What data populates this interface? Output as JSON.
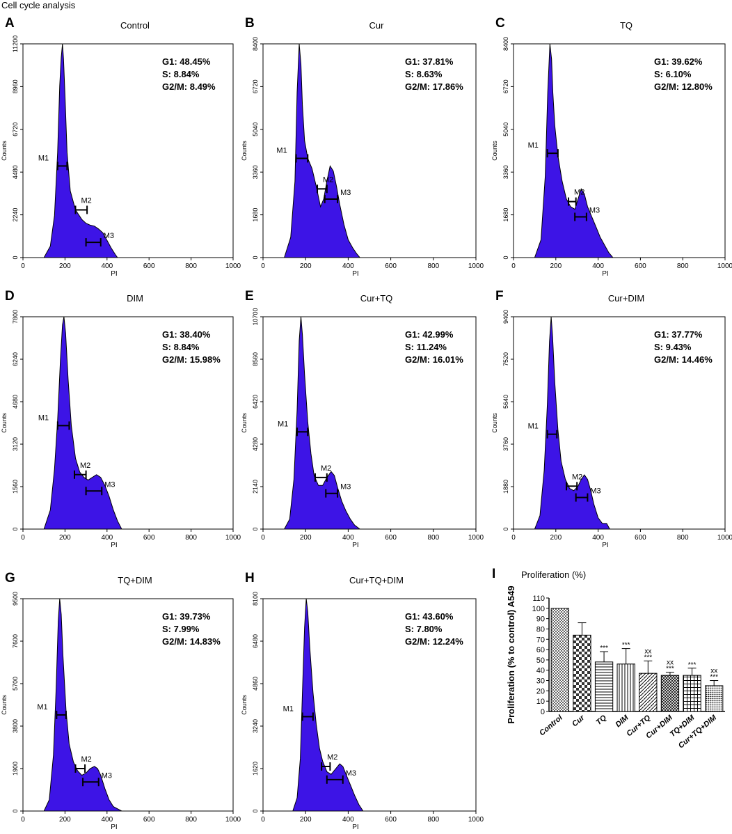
{
  "figure_title": "Cell cycle analysis",
  "colors": {
    "fill": "#3d14e6",
    "stroke": "#000000"
  },
  "chart_data": [
    {
      "type": "area",
      "panel": "A",
      "title": "Control",
      "xlabel": "PI",
      "ylabel": "Counts",
      "xlim": [
        0,
        1000
      ],
      "ylim": [
        0,
        11200
      ],
      "xticks": [
        0,
        200,
        400,
        600,
        800,
        1000
      ],
      "yticks": [
        0,
        2240,
        4480,
        6720,
        8960,
        11200
      ],
      "stats": [
        "G1: 48.45%",
        "S: 8.84%",
        "G2/M: 8.49%"
      ],
      "x": [
        100,
        130,
        150,
        165,
        175,
        182,
        188,
        193,
        200,
        210,
        225,
        250,
        280,
        300,
        320,
        340,
        360,
        380,
        400,
        420,
        440,
        450
      ],
      "values": [
        0,
        600,
        2200,
        5500,
        9000,
        10500,
        11200,
        10400,
        8500,
        5500,
        3500,
        2500,
        2000,
        1800,
        1700,
        1650,
        1500,
        1300,
        900,
        500,
        150,
        0
      ],
      "markers": [
        {
          "label": "M1",
          "x1": 165,
          "x2": 210,
          "y": 4800
        },
        {
          "label": "M2",
          "x1": 250,
          "x2": 305,
          "y": 2500
        },
        {
          "label": "M3",
          "x1": 300,
          "x2": 370,
          "y": 800
        }
      ]
    },
    {
      "type": "area",
      "panel": "B",
      "title": "Cur",
      "xlabel": "PI",
      "ylabel": "Counts",
      "xlim": [
        0,
        1000
      ],
      "ylim": [
        0,
        8400
      ],
      "xticks": [
        0,
        200,
        400,
        600,
        800,
        1000
      ],
      "yticks": [
        0,
        1680,
        3360,
        5040,
        6720,
        8400
      ],
      "stats": [
        "G1: 37.81%",
        "S: 8.63%",
        "G2/M: 17.86%"
      ],
      "x": [
        100,
        130,
        150,
        160,
        170,
        178,
        185,
        195,
        210,
        230,
        250,
        270,
        285,
        300,
        315,
        330,
        345,
        360,
        380,
        400,
        420,
        440,
        455
      ],
      "values": [
        0,
        800,
        3000,
        6500,
        8400,
        7600,
        6000,
        4600,
        3900,
        3500,
        2800,
        2000,
        2300,
        3000,
        3600,
        3400,
        2800,
        2100,
        1300,
        700,
        400,
        150,
        0
      ],
      "markers": [
        {
          "label": "M1",
          "x1": 155,
          "x2": 210,
          "y": 3900
        },
        {
          "label": "M2",
          "x1": 255,
          "x2": 300,
          "y": 2700
        },
        {
          "label": "M3",
          "x1": 290,
          "x2": 350,
          "y": 2300
        }
      ]
    },
    {
      "type": "area",
      "panel": "C",
      "title": "TQ",
      "xlabel": "PI",
      "ylabel": "Counts",
      "xlim": [
        0,
        1000
      ],
      "ylim": [
        0,
        8400
      ],
      "xticks": [
        0,
        200,
        400,
        600,
        800,
        1000
      ],
      "yticks": [
        0,
        1680,
        3360,
        5040,
        6720,
        8400
      ],
      "stats": [
        "G1: 39.62%",
        "S: 6.10%",
        "G2/M: 12.80%"
      ],
      "x": [
        100,
        130,
        150,
        162,
        172,
        180,
        186,
        195,
        210,
        230,
        250,
        270,
        290,
        305,
        320,
        335,
        350,
        370,
        390,
        410,
        430,
        450,
        470
      ],
      "values": [
        0,
        700,
        3200,
        6500,
        8400,
        7800,
        6500,
        5200,
        4000,
        3000,
        2300,
        2000,
        1900,
        2300,
        2700,
        2500,
        2000,
        1600,
        1200,
        800,
        500,
        200,
        0
      ],
      "markers": [
        {
          "label": "M1",
          "x1": 160,
          "x2": 210,
          "y": 4100
        },
        {
          "label": "M2",
          "x1": 260,
          "x2": 295,
          "y": 2200
        },
        {
          "label": "M3",
          "x1": 290,
          "x2": 345,
          "y": 1600
        }
      ]
    },
    {
      "type": "area",
      "panel": "D",
      "title": "DIM",
      "xlabel": "PI",
      "ylabel": "Counts",
      "xlim": [
        0,
        1000
      ],
      "ylim": [
        0,
        7800
      ],
      "xticks": [
        0,
        200,
        400,
        600,
        800,
        1000
      ],
      "yticks": [
        0,
        1560,
        3120,
        4680,
        6240,
        7800
      ],
      "stats": [
        "G1: 38.40%",
        "S: 8.84%",
        "G2/M: 15.98%"
      ],
      "x": [
        100,
        130,
        150,
        165,
        178,
        188,
        195,
        203,
        215,
        230,
        250,
        270,
        290,
        310,
        330,
        350,
        370,
        390,
        410,
        430,
        450,
        470
      ],
      "values": [
        0,
        700,
        2200,
        4000,
        6200,
        7500,
        7800,
        7200,
        5500,
        3800,
        2600,
        2100,
        1900,
        1800,
        1900,
        2000,
        1900,
        1600,
        1200,
        700,
        300,
        0
      ],
      "markers": [
        {
          "label": "M1",
          "x1": 165,
          "x2": 220,
          "y": 3800
        },
        {
          "label": "M2",
          "x1": 245,
          "x2": 300,
          "y": 2000
        },
        {
          "label": "M3",
          "x1": 300,
          "x2": 375,
          "y": 1400
        }
      ]
    },
    {
      "type": "area",
      "panel": "E",
      "title": "Cur+TQ",
      "xlabel": "PI",
      "ylabel": "Counts",
      "xlim": [
        0,
        1000
      ],
      "ylim": [
        0,
        10700
      ],
      "xticks": [
        0,
        200,
        400,
        600,
        800,
        1000
      ],
      "yticks": [
        0,
        2140,
        4280,
        6420,
        8560,
        10700
      ],
      "stats": [
        "G1: 42.99%",
        "S: 11.24%",
        "G2/M: 16.01%"
      ],
      "x": [
        100,
        125,
        145,
        160,
        170,
        178,
        185,
        195,
        210,
        225,
        240,
        260,
        280,
        300,
        320,
        335,
        350,
        370,
        390,
        410,
        430,
        455
      ],
      "values": [
        0,
        500,
        2500,
        6000,
        9500,
        10700,
        9800,
        7800,
        5400,
        3800,
        2700,
        2200,
        2200,
        2600,
        2900,
        2700,
        2100,
        1400,
        900,
        500,
        200,
        0
      ],
      "markers": [
        {
          "label": "M1",
          "x1": 160,
          "x2": 210,
          "y": 4900
        },
        {
          "label": "M2",
          "x1": 245,
          "x2": 300,
          "y": 2600
        },
        {
          "label": "M3",
          "x1": 295,
          "x2": 350,
          "y": 1800
        }
      ]
    },
    {
      "type": "area",
      "panel": "F",
      "title": "Cur+DIM",
      "xlabel": "PI",
      "ylabel": "Counts",
      "xlim": [
        0,
        1000
      ],
      "ylim": [
        0,
        9400
      ],
      "xticks": [
        0,
        200,
        400,
        600,
        800,
        1000
      ],
      "yticks": [
        0,
        1880,
        3760,
        5640,
        7520,
        9400
      ],
      "stats": [
        "G1: 37.77%",
        "S: 9.43%",
        "G2/M: 14.46%"
      ],
      "x": [
        100,
        125,
        145,
        160,
        170,
        178,
        185,
        195,
        210,
        225,
        245,
        265,
        285,
        305,
        320,
        335,
        350,
        365,
        380,
        400,
        420,
        440,
        455
      ],
      "values": [
        0,
        600,
        2600,
        5500,
        8300,
        9400,
        8500,
        6500,
        4400,
        3000,
        2200,
        1800,
        1700,
        1900,
        2200,
        2400,
        2200,
        1700,
        1100,
        500,
        250,
        250,
        0
      ],
      "markers": [
        {
          "label": "M1",
          "x1": 160,
          "x2": 205,
          "y": 4200
        },
        {
          "label": "M2",
          "x1": 250,
          "x2": 300,
          "y": 1900
        },
        {
          "label": "M3",
          "x1": 295,
          "x2": 350,
          "y": 1400
        }
      ]
    },
    {
      "type": "area",
      "panel": "G",
      "title": "TQ+DIM",
      "xlabel": "PI",
      "ylabel": "Counts",
      "xlim": [
        0,
        1000
      ],
      "ylim": [
        0,
        9500
      ],
      "xticks": [
        0,
        200,
        400,
        600,
        800,
        1000
      ],
      "yticks": [
        0,
        1900,
        3800,
        5700,
        7600,
        9500
      ],
      "stats": [
        "G1: 39.73%",
        "S: 7.99%",
        "G2/M: 14.83%"
      ],
      "x": [
        100,
        125,
        145,
        158,
        168,
        175,
        182,
        190,
        205,
        220,
        240,
        260,
        280,
        300,
        320,
        340,
        355,
        370,
        390,
        410,
        430,
        450,
        470
      ],
      "values": [
        0,
        500,
        2500,
        5500,
        8500,
        9500,
        8800,
        7000,
        4500,
        3000,
        2200,
        1800,
        1600,
        1700,
        1900,
        2000,
        1900,
        1600,
        1000,
        500,
        200,
        100,
        0
      ],
      "markers": [
        {
          "label": "M1",
          "x1": 160,
          "x2": 205,
          "y": 4300
        },
        {
          "label": "M2",
          "x1": 250,
          "x2": 295,
          "y": 1900
        },
        {
          "label": "M3",
          "x1": 285,
          "x2": 360,
          "y": 1300
        }
      ]
    },
    {
      "type": "area",
      "panel": "H",
      "title": "Cur+TQ+DIM",
      "xlabel": "PI",
      "ylabel": "Counts",
      "xlim": [
        0,
        1000
      ],
      "ylim": [
        0,
        8100
      ],
      "xticks": [
        0,
        200,
        400,
        600,
        800,
        1000
      ],
      "yticks": [
        0,
        1620,
        3240,
        4860,
        6480,
        8100
      ],
      "stats": [
        "G1: 43.60%",
        "S: 7.80%",
        "G2/M: 12.24%"
      ],
      "x": [
        140,
        160,
        175,
        185,
        195,
        203,
        210,
        220,
        235,
        250,
        265,
        280,
        300,
        320,
        340,
        360,
        375,
        390,
        410,
        430,
        450,
        470
      ],
      "values": [
        0,
        500,
        2000,
        4500,
        7000,
        8100,
        7600,
        6200,
        4500,
        3300,
        2400,
        1900,
        1500,
        1400,
        1600,
        1800,
        1700,
        1400,
        1000,
        600,
        250,
        0
      ],
      "markers": [
        {
          "label": "M1",
          "x1": 185,
          "x2": 235,
          "y": 3600
        },
        {
          "label": "M2",
          "x1": 275,
          "x2": 315,
          "y": 1700
        },
        {
          "label": "M3",
          "x1": 300,
          "x2": 375,
          "y": 1200
        }
      ]
    },
    {
      "type": "bar",
      "panel": "I",
      "title": "Proliferation (%)",
      "ylabel": "Proliferation (% to control) A549",
      "ylim": [
        0,
        110
      ],
      "yticks": [
        0,
        10,
        20,
        30,
        40,
        50,
        60,
        70,
        80,
        90,
        100,
        110
      ],
      "categories": [
        "Control",
        "Cur",
        "TQ",
        "DIM",
        "Cur+TQ",
        "Cur+DIM",
        "TQ+DIM",
        "Cur+TQ+DIM"
      ],
      "values": [
        100,
        74,
        48,
        46,
        37,
        35,
        35,
        25
      ],
      "errors": [
        0,
        12,
        10,
        15,
        12,
        3,
        7,
        5
      ],
      "sig_star": [
        "",
        "",
        "***",
        "***",
        "***",
        "***",
        "***",
        "***"
      ],
      "sig_xx": [
        "",
        "",
        "",
        "",
        "xx",
        "xx",
        "",
        "xx"
      ]
    }
  ]
}
